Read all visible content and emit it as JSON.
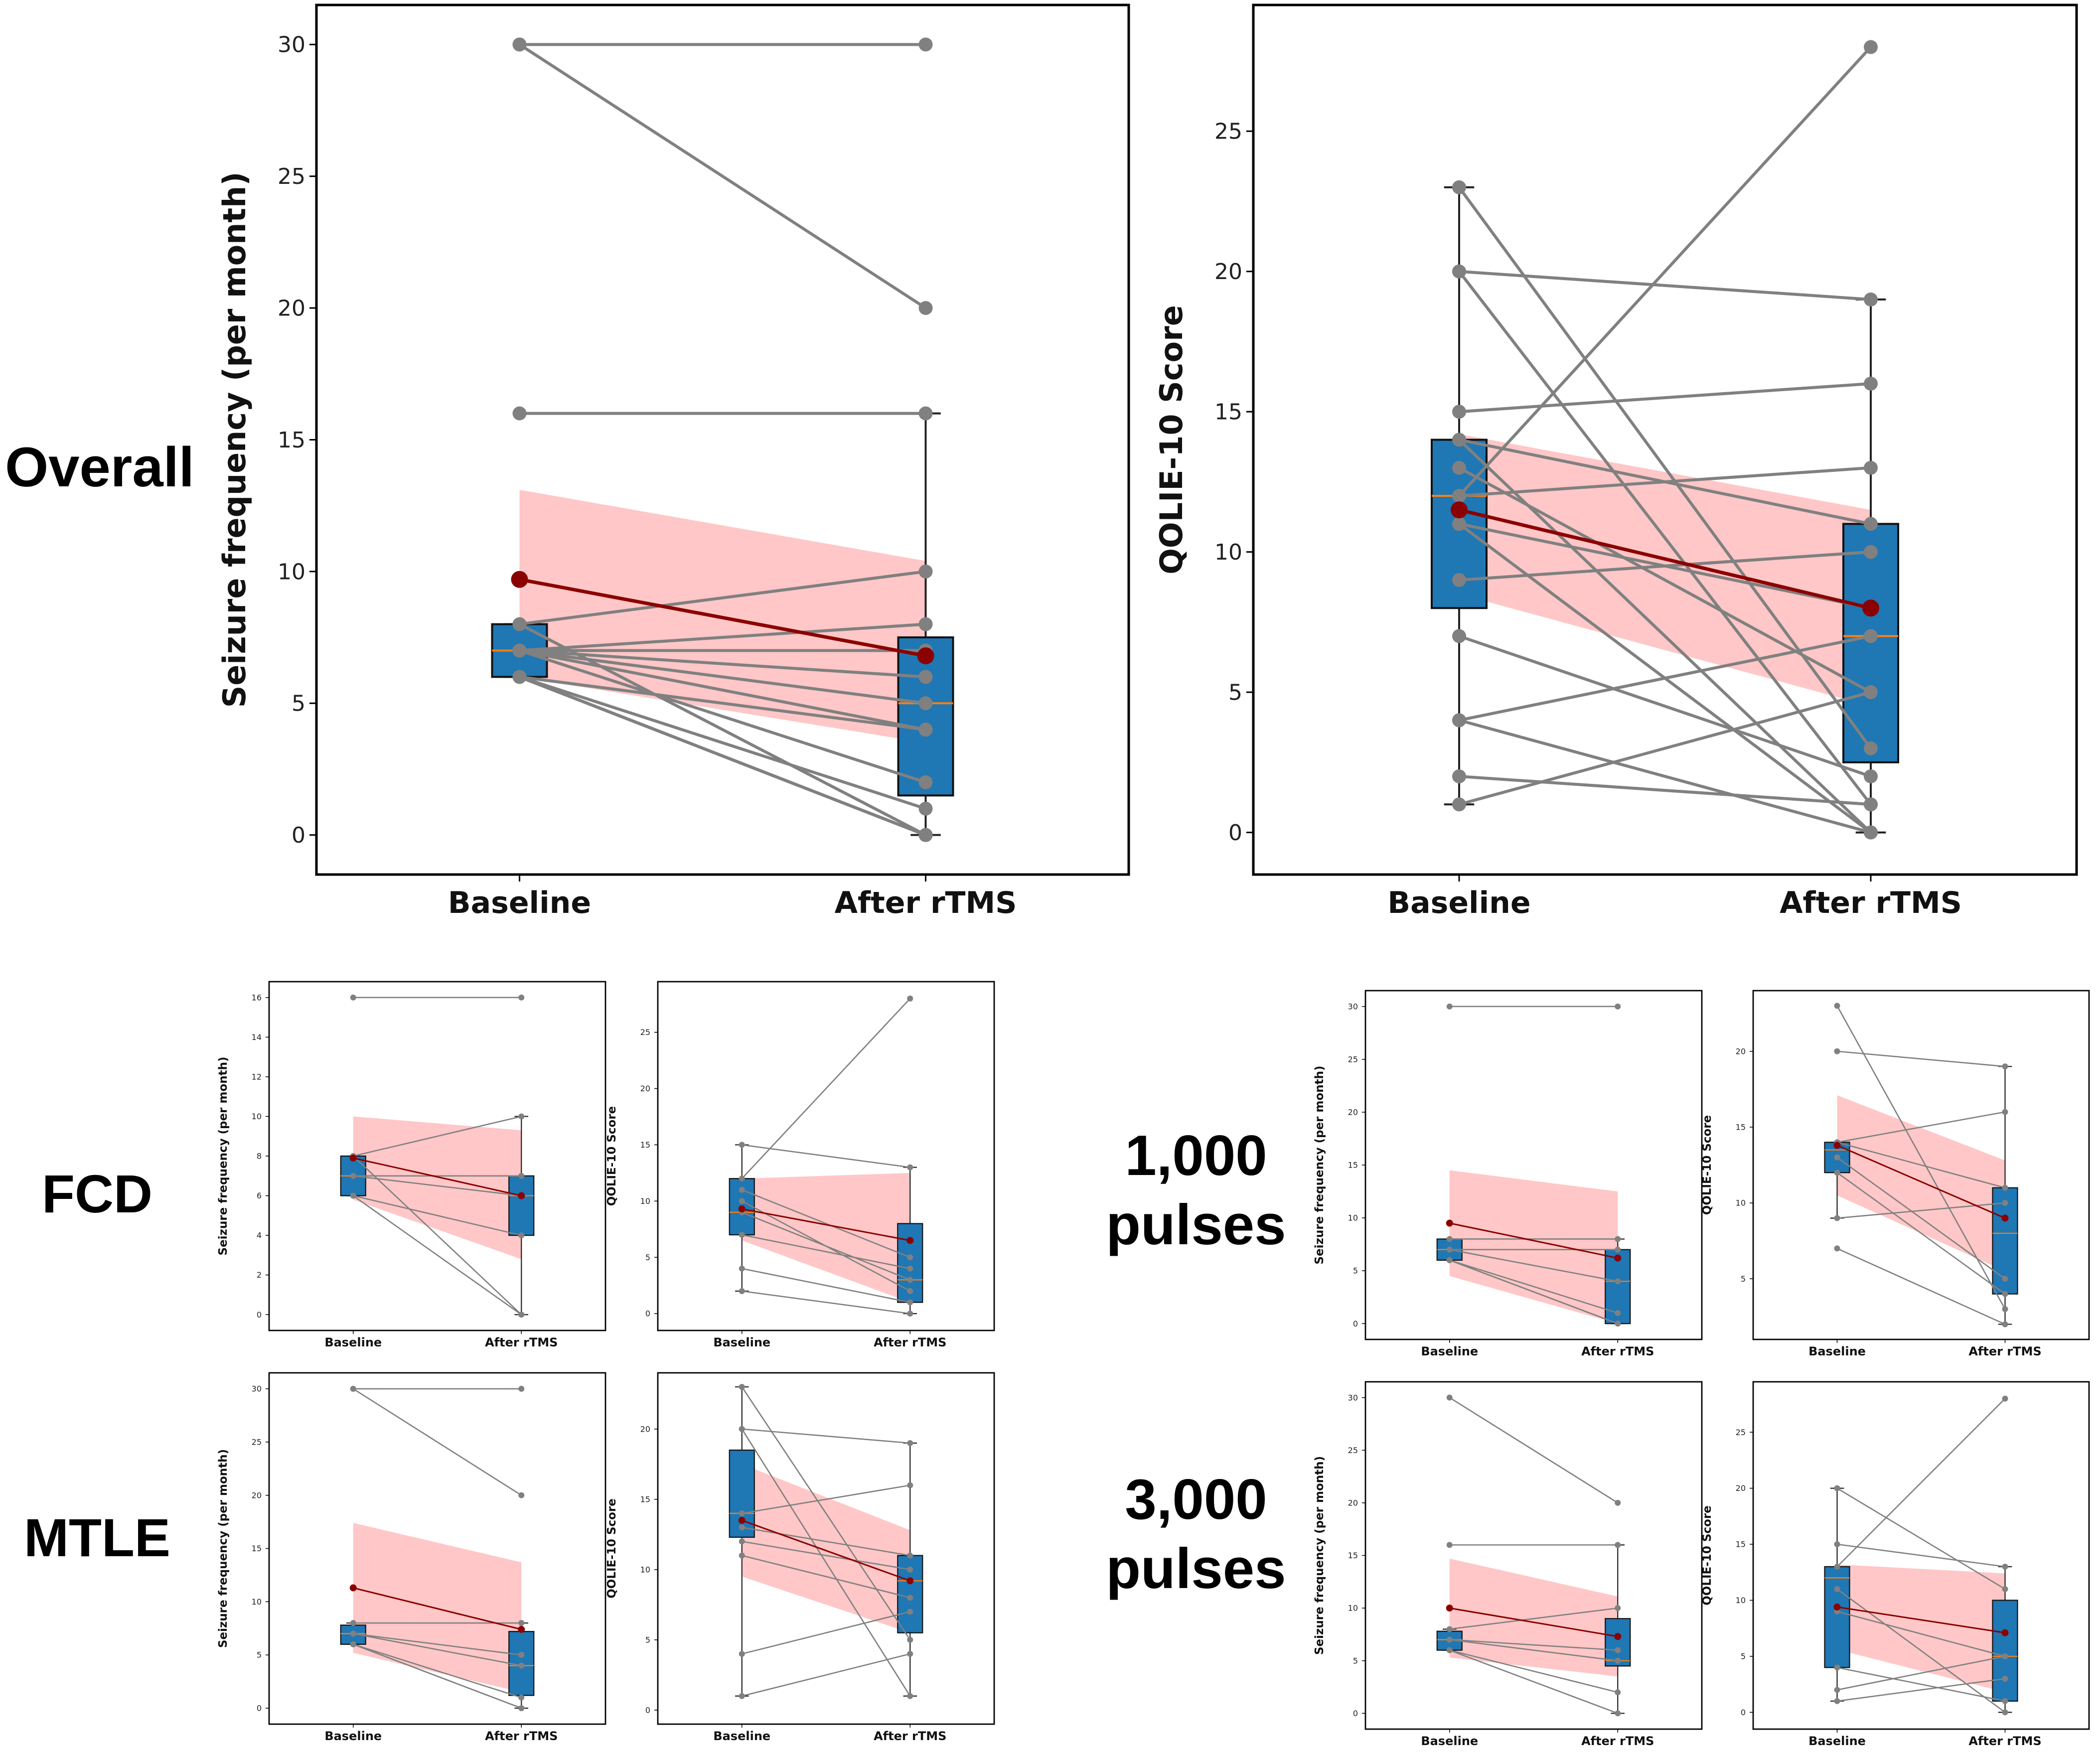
{
  "groups": {
    "overall": "Overall",
    "fcd": "FCD",
    "mtle": "MTLE",
    "p1000_line1": "1,000",
    "p1000_line2": "pulses",
    "p3000_line1": "3,000",
    "p3000_line2": "pulses"
  },
  "colors": {
    "box": "#1f77b4",
    "median": "#ff7f0e",
    "mean": "#8b0000",
    "band": "#ff9999",
    "patient_line": "#808080"
  },
  "chart_data": [
    {
      "id": "overall_seizure",
      "type": "box",
      "title": "",
      "xlabel": "",
      "ylabel": "Seizure frequency (per month)",
      "categories": [
        "Baseline",
        "After rTMS"
      ],
      "ylim": [
        -1.5,
        31.5
      ],
      "yticks": [
        0,
        5,
        10,
        15,
        20,
        25,
        30
      ],
      "boxes": [
        {
          "q1": 6,
          "median": 7,
          "q3": 8,
          "whisker_low": 6,
          "whisker_high": 8
        },
        {
          "q1": 1.5,
          "median": 5,
          "q3": 7.5,
          "whisker_low": 0,
          "whisker_high": 16
        }
      ],
      "mean": [
        9.7,
        6.8
      ],
      "ci_low": [
        6.0,
        3.5
      ],
      "ci_high": [
        13.1,
        10.4
      ],
      "pairs": [
        [
          30,
          30
        ],
        [
          30,
          20
        ],
        [
          16,
          16
        ],
        [
          8,
          10
        ],
        [
          8,
          0
        ],
        [
          7,
          8
        ],
        [
          7,
          7
        ],
        [
          7,
          6
        ],
        [
          7,
          5
        ],
        [
          7,
          4
        ],
        [
          7,
          2
        ],
        [
          6,
          4
        ],
        [
          6,
          1
        ],
        [
          6,
          0
        ],
        [
          6,
          0
        ],
        [
          6,
          0
        ],
        [
          6,
          0
        ]
      ]
    },
    {
      "id": "overall_qolie",
      "type": "box",
      "title": "",
      "xlabel": "",
      "ylabel": "QOLIE-10 Score",
      "categories": [
        "Baseline",
        "After rTMS"
      ],
      "ylim": [
        -1.5,
        29.5
      ],
      "yticks": [
        0,
        5,
        10,
        15,
        20,
        25
      ],
      "boxes": [
        {
          "q1": 8,
          "median": 12,
          "q3": 14,
          "whisker_low": 1,
          "whisker_high": 23
        },
        {
          "q1": 2.5,
          "median": 7,
          "q3": 11,
          "whisker_low": 0,
          "whisker_high": 19
        }
      ],
      "mean": [
        11.5,
        8.0
      ],
      "ci_low": [
        8.5,
        4.5
      ],
      "ci_high": [
        14.2,
        11.5
      ],
      "pairs": [
        [
          23,
          3
        ],
        [
          20,
          19
        ],
        [
          20,
          1
        ],
        [
          15,
          16
        ],
        [
          14,
          11
        ],
        [
          13,
          5
        ],
        [
          12,
          28
        ],
        [
          12,
          13
        ],
        [
          11,
          8
        ],
        [
          11,
          0
        ],
        [
          9,
          10
        ],
        [
          7,
          2
        ],
        [
          4,
          7
        ],
        [
          4,
          0
        ],
        [
          2,
          1
        ],
        [
          1,
          5
        ],
        [
          14,
          0
        ]
      ]
    },
    {
      "id": "fcd_seizure",
      "type": "box",
      "title": "",
      "xlabel": "",
      "ylabel": "Seizure frequency (per month)",
      "categories": [
        "Baseline",
        "After rTMS"
      ],
      "ylim": [
        -0.8,
        16.8
      ],
      "yticks": [
        0,
        2,
        4,
        6,
        8,
        10,
        12,
        14,
        16
      ],
      "boxes": [
        {
          "q1": 6,
          "median": 7,
          "q3": 8,
          "whisker_low": 6,
          "whisker_high": 8
        },
        {
          "q1": 4,
          "median": 6,
          "q3": 7,
          "whisker_low": 0,
          "whisker_high": 10
        }
      ],
      "mean": [
        7.9,
        6.0
      ],
      "ci_low": [
        5.8,
        2.8
      ],
      "ci_high": [
        10.0,
        9.3
      ],
      "pairs": [
        [
          16,
          16
        ],
        [
          8,
          10
        ],
        [
          8,
          0
        ],
        [
          7,
          7
        ],
        [
          7,
          6
        ],
        [
          6,
          4
        ],
        [
          6,
          0
        ]
      ]
    },
    {
      "id": "fcd_qolie",
      "type": "box",
      "title": "",
      "xlabel": "",
      "ylabel": "QOLIE-10 Score",
      "categories": [
        "Baseline",
        "After rTMS"
      ],
      "ylim": [
        -1.5,
        29.5
      ],
      "yticks": [
        0,
        5,
        10,
        15,
        20,
        25
      ],
      "boxes": [
        {
          "q1": 7,
          "median": 9,
          "q3": 12,
          "whisker_low": 2,
          "whisker_high": 15
        },
        {
          "q1": 1,
          "median": 3,
          "q3": 8,
          "whisker_low": 0,
          "whisker_high": 13
        }
      ],
      "mean": [
        9.3,
        6.5
      ],
      "ci_low": [
        6.5,
        1.0
      ],
      "ci_high": [
        12.0,
        12.5
      ],
      "pairs": [
        [
          15,
          13
        ],
        [
          12,
          28
        ],
        [
          11,
          5
        ],
        [
          10,
          2
        ],
        [
          9,
          3
        ],
        [
          7,
          4
        ],
        [
          4,
          1
        ],
        [
          2,
          0
        ]
      ]
    },
    {
      "id": "mtle_seizure",
      "type": "box",
      "title": "",
      "xlabel": "",
      "ylabel": "Seizure frequency (per month)",
      "categories": [
        "Baseline",
        "After rTMS"
      ],
      "ylim": [
        -1.5,
        31.5
      ],
      "yticks": [
        0,
        5,
        10,
        15,
        20,
        25,
        30
      ],
      "boxes": [
        {
          "q1": 6,
          "median": 7,
          "q3": 7.8,
          "whisker_low": 6,
          "whisker_high": 8
        },
        {
          "q1": 1.2,
          "median": 4,
          "q3": 7.2,
          "whisker_low": 0,
          "whisker_high": 8
        }
      ],
      "mean": [
        11.3,
        7.4
      ],
      "ci_low": [
        5.2,
        1.5
      ],
      "ci_high": [
        17.4,
        13.7
      ],
      "pairs": [
        [
          30,
          30
        ],
        [
          30,
          20
        ],
        [
          8,
          8
        ],
        [
          7,
          5
        ],
        [
          7,
          4
        ],
        [
          6,
          1
        ],
        [
          6,
          0
        ],
        [
          6,
          0
        ]
      ]
    },
    {
      "id": "mtle_qolie",
      "type": "box",
      "title": "",
      "xlabel": "",
      "ylabel": "QOLIE-10 Score",
      "categories": [
        "Baseline",
        "After rTMS"
      ],
      "ylim": [
        -1.0,
        24.0
      ],
      "yticks": [
        0,
        5,
        10,
        15,
        20
      ],
      "boxes": [
        {
          "q1": 12.3,
          "median": 14,
          "q3": 18.5,
          "whisker_low": 1,
          "whisker_high": 23
        },
        {
          "q1": 5.5,
          "median": 9.2,
          "q3": 11,
          "whisker_low": 1,
          "whisker_high": 19
        }
      ],
      "mean": [
        13.5,
        9.2
      ],
      "ci_low": [
        9.5,
        5.5
      ],
      "ci_high": [
        17.5,
        12.8
      ],
      "pairs": [
        [
          23,
          5
        ],
        [
          20,
          19
        ],
        [
          20,
          1
        ],
        [
          14,
          16
        ],
        [
          13,
          11
        ],
        [
          12,
          10
        ],
        [
          11,
          8
        ],
        [
          4,
          7
        ],
        [
          1,
          4
        ]
      ]
    },
    {
      "id": "p1000_seizure",
      "type": "box",
      "title": "",
      "xlabel": "",
      "ylabel": "Seizure frequency (per month)",
      "categories": [
        "Baseline",
        "After rTMS"
      ],
      "ylim": [
        -1.5,
        31.5
      ],
      "yticks": [
        0,
        5,
        10,
        15,
        20,
        25,
        30
      ],
      "boxes": [
        {
          "q1": 6,
          "median": 7,
          "q3": 8,
          "whisker_low": 6,
          "whisker_high": 8
        },
        {
          "q1": 0,
          "median": 4,
          "q3": 7,
          "whisker_low": 0,
          "whisker_high": 8
        }
      ],
      "mean": [
        9.5,
        6.2
      ],
      "ci_low": [
        4.5,
        0.0
      ],
      "ci_high": [
        14.5,
        12.5
      ],
      "pairs": [
        [
          30,
          30
        ],
        [
          8,
          8
        ],
        [
          7,
          7
        ],
        [
          7,
          4
        ],
        [
          6,
          1
        ],
        [
          6,
          0
        ],
        [
          6,
          0
        ]
      ]
    },
    {
      "id": "p1000_qolie",
      "type": "box",
      "title": "",
      "xlabel": "",
      "ylabel": "QOLIE-10 Score",
      "categories": [
        "Baseline",
        "After rTMS"
      ],
      "ylim": [
        1.0,
        24.0
      ],
      "yticks": [
        5,
        10,
        15,
        20
      ],
      "boxes": [
        {
          "q1": 12,
          "median": 13.5,
          "q3": 14,
          "whisker_low": 9,
          "whisker_high": 14
        },
        {
          "q1": 4,
          "median": 8,
          "q3": 11,
          "whisker_low": 2,
          "whisker_high": 19
        }
      ],
      "mean": [
        13.8,
        9.0
      ],
      "ci_low": [
        10.5,
        5.5
      ],
      "ci_high": [
        17.1,
        12.8
      ],
      "pairs": [
        [
          23,
          3
        ],
        [
          20,
          19
        ],
        [
          14,
          16
        ],
        [
          14,
          11
        ],
        [
          13,
          5
        ],
        [
          12,
          4
        ],
        [
          9,
          10
        ],
        [
          7,
          2
        ]
      ]
    },
    {
      "id": "p3000_seizure",
      "type": "box",
      "title": "",
      "xlabel": "",
      "ylabel": "Seizure frequency (per month)",
      "categories": [
        "Baseline",
        "After rTMS"
      ],
      "ylim": [
        -1.5,
        31.5
      ],
      "yticks": [
        0,
        5,
        10,
        15,
        20,
        25,
        30
      ],
      "boxes": [
        {
          "q1": 6,
          "median": 7,
          "q3": 7.8,
          "whisker_low": 6,
          "whisker_high": 8
        },
        {
          "q1": 4.5,
          "median": 5,
          "q3": 9,
          "whisker_low": 0,
          "whisker_high": 16
        }
      ],
      "mean": [
        10.0,
        7.3
      ],
      "ci_low": [
        5.3,
        3.5
      ],
      "ci_high": [
        14.7,
        11.1
      ],
      "pairs": [
        [
          30,
          20
        ],
        [
          16,
          16
        ],
        [
          8,
          10
        ],
        [
          7,
          6
        ],
        [
          7,
          5
        ],
        [
          6,
          2
        ],
        [
          6,
          0
        ]
      ]
    },
    {
      "id": "p3000_qolie",
      "type": "box",
      "title": "",
      "xlabel": "",
      "ylabel": "QOLIE-10 Score",
      "categories": [
        "Baseline",
        "After rTMS"
      ],
      "ylim": [
        -1.5,
        29.5
      ],
      "yticks": [
        0,
        5,
        10,
        15,
        20,
        25
      ],
      "boxes": [
        {
          "q1": 4,
          "median": 12,
          "q3": 13,
          "whisker_low": 1,
          "whisker_high": 20
        },
        {
          "q1": 1,
          "median": 5,
          "q3": 10,
          "whisker_low": 0,
          "whisker_high": 13
        }
      ],
      "mean": [
        9.4,
        7.1
      ],
      "ci_low": [
        5.6,
        1.8
      ],
      "ci_high": [
        13.2,
        12.4
      ],
      "pairs": [
        [
          20,
          11
        ],
        [
          15,
          13
        ],
        [
          13,
          28
        ],
        [
          11,
          0
        ],
        [
          9,
          5
        ],
        [
          4,
          1
        ],
        [
          2,
          5
        ],
        [
          1,
          3
        ]
      ]
    }
  ]
}
